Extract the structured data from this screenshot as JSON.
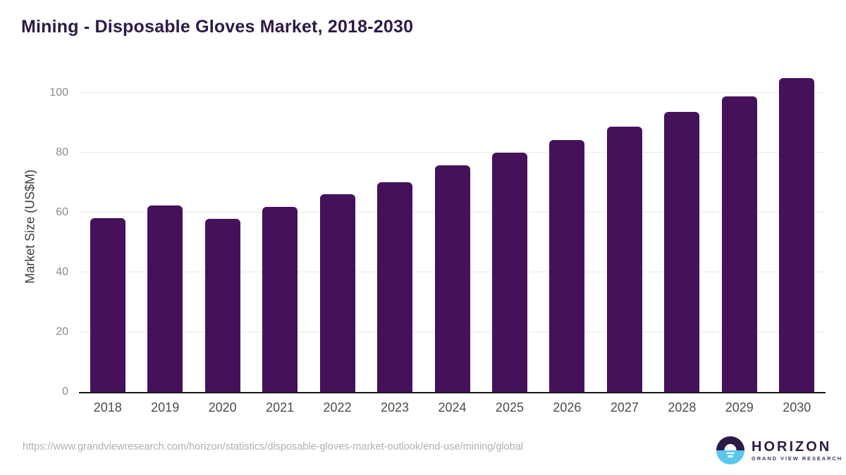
{
  "page": {
    "title": "Mining - Disposable Gloves Market, 2018-2030",
    "footer": {
      "source_url": "https://www.grandviewresearch.com/horizon/statistics/disposable-gloves-market-outlook/end-use/mining/global",
      "brand": {
        "name": "HORIZON",
        "tagline": "GRAND VIEW RESEARCH"
      }
    }
  },
  "chart_data": {
    "type": "bar",
    "title": "Mining - Disposable Gloves Market, 2018-2030",
    "categories": [
      "2018",
      "2019",
      "2020",
      "2021",
      "2022",
      "2023",
      "2024",
      "2025",
      "2026",
      "2027",
      "2028",
      "2029",
      "2030"
    ],
    "values": [
      58.1,
      62.4,
      58.0,
      62.0,
      66.1,
      70.2,
      75.8,
      80.0,
      84.3,
      88.8,
      93.7,
      98.9,
      104.9
    ],
    "xlabel": "",
    "ylabel": "Market Size (US$M)",
    "ylim": [
      0,
      110
    ],
    "yticks": [
      0,
      20,
      40,
      60,
      80,
      100
    ],
    "grid": "horizontal",
    "legend": "none",
    "bar_color": "#45115a"
  },
  "colors": {
    "bar": "#45115a",
    "title_text": "#2e1a47",
    "axis_line": "#1a1a1a",
    "gridline": "#e8e8e8",
    "y_tick_text": "#8c8c8c",
    "x_tick_text": "#4c4c4c",
    "url_text": "#b0b0b0",
    "logo_purple": "#2e1a47",
    "logo_blue": "#5bc6ee"
  },
  "icons": {
    "logo_mark": "horizon-sunset-circle"
  }
}
